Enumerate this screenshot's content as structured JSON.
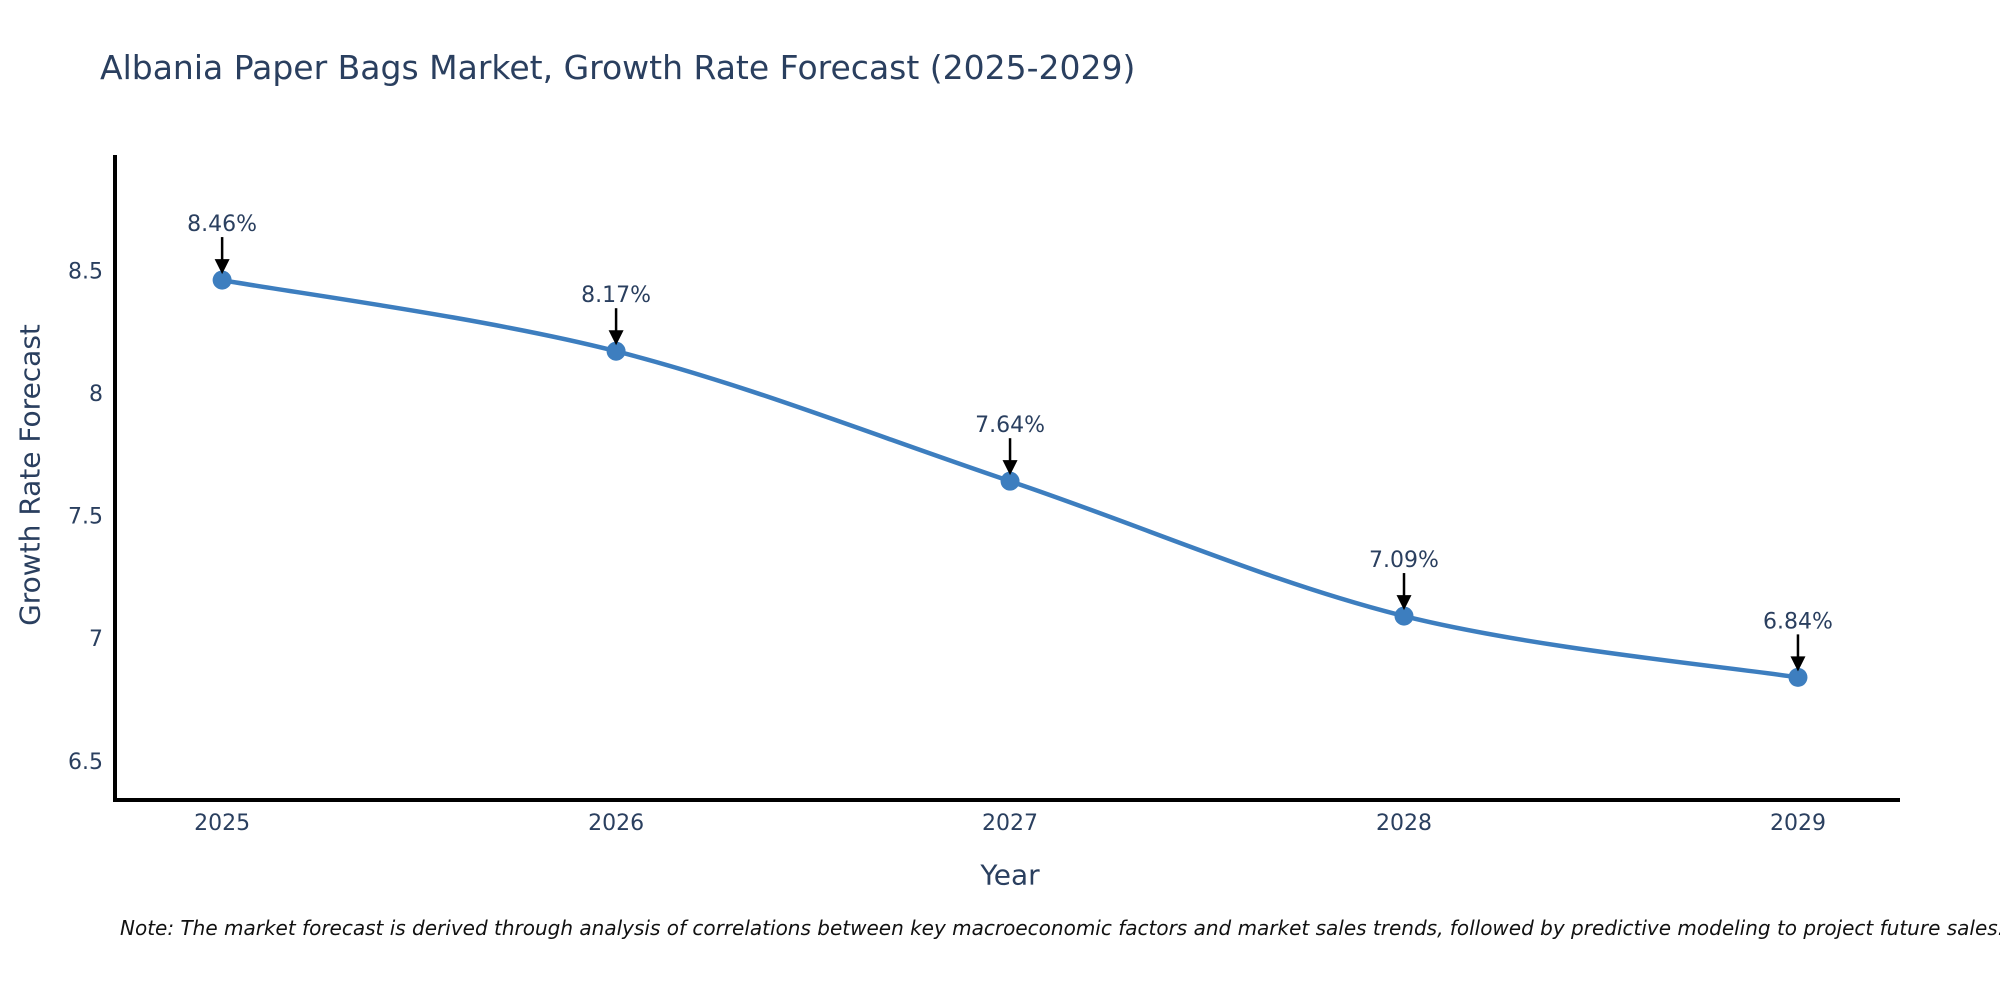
{
  "note": "Note: The market forecast is derived through analysis of correlations between key macroeconomic factors and market sales trends, followed by predictive modeling to project future sales.",
  "chart_data": {
    "type": "line",
    "title": "Albania Paper Bags Market, Growth Rate Forecast (2025-2029)",
    "xlabel": "Year",
    "ylabel": "Growth Rate Forecast",
    "x": [
      2025,
      2026,
      2027,
      2028,
      2029
    ],
    "values": [
      8.46,
      8.17,
      7.64,
      7.09,
      6.84
    ],
    "point_labels": [
      "8.46%",
      "8.17%",
      "7.64%",
      "7.09%",
      "6.84%"
    ],
    "xtick_labels": [
      "2025",
      "2026",
      "2027",
      "2028",
      "2029"
    ],
    "ytick_values": [
      6.5,
      7,
      7.5,
      8,
      8.5
    ],
    "ytick_labels": [
      "6.5",
      "7",
      "7.5",
      "8",
      "8.5"
    ],
    "xlim": [
      2024.723,
      2029.259
    ],
    "ylim": [
      6.34,
      8.97
    ],
    "line_shape": "spline",
    "grid": false,
    "legend": "none",
    "colors": {
      "line": "#3d7ebf",
      "marker": "#3d7ebf",
      "axis_line": "#000000",
      "tick_text": "#2a3f5f",
      "annotation_text": "#2a3f5f",
      "annotation_arrow": "#000000",
      "title_text": "#2a3f5f",
      "note_text": "#111111",
      "background": "#ffffff"
    }
  }
}
